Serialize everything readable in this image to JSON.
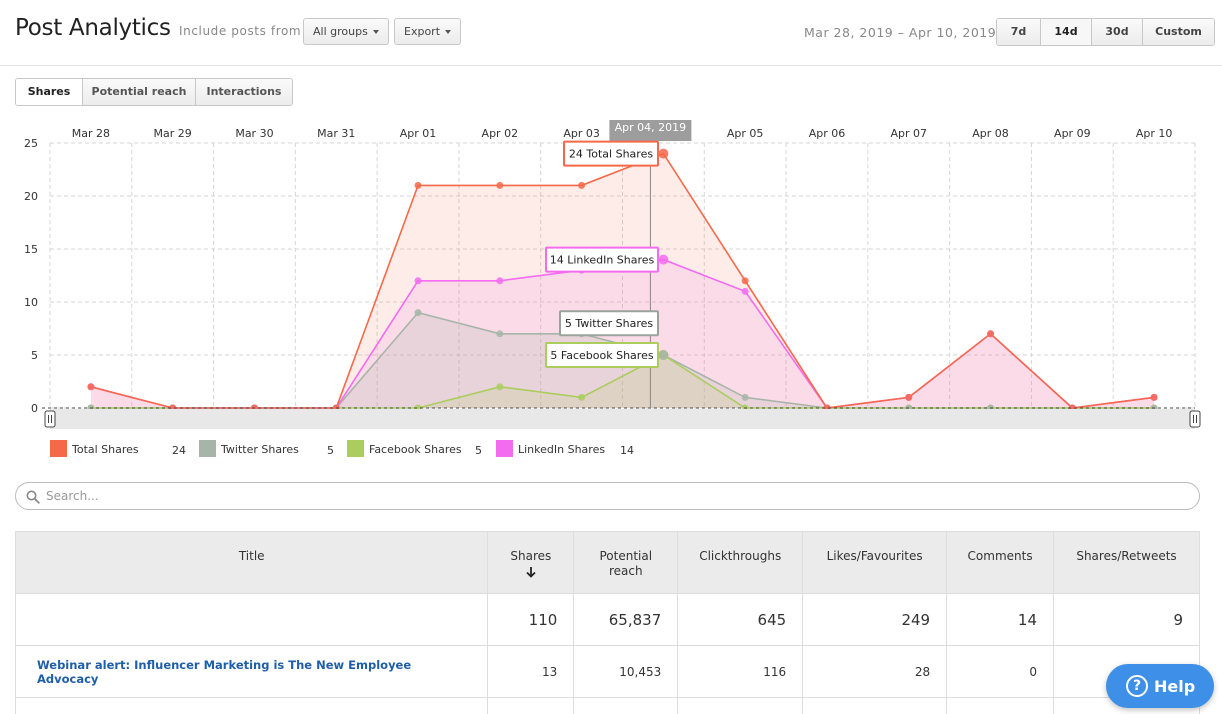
{
  "header": {
    "title": "Post Analytics",
    "include_label": "Include posts from",
    "groups_button": "All groups",
    "export_button": "Export",
    "date_range": "Mar 28, 2019 – Apr 10, 2019",
    "range_buttons": [
      "7d",
      "14d",
      "30d",
      "Custom"
    ],
    "active_range": "14d"
  },
  "tabs": {
    "items": [
      "Shares",
      "Potential reach",
      "Interactions"
    ],
    "active": "Shares"
  },
  "chart_data": {
    "type": "area",
    "x": [
      "Mar 28",
      "Mar 29",
      "Mar 30",
      "Mar 31",
      "Apr 01",
      "Apr 02",
      "Apr 03",
      "Apr 04",
      "Apr 05",
      "Apr 06",
      "Apr 07",
      "Apr 08",
      "Apr 09",
      "Apr 10"
    ],
    "series": [
      {
        "name": "Total Shares",
        "color": "#f5694a",
        "values": [
          2,
          0,
          0,
          0,
          21,
          21,
          21,
          24,
          12,
          0,
          1,
          7,
          0,
          1
        ]
      },
      {
        "name": "Twitter Shares",
        "color": "#a7b5a8",
        "values": [
          0,
          0,
          0,
          0,
          9,
          7,
          7,
          5,
          1,
          0,
          0,
          0,
          0,
          0
        ]
      },
      {
        "name": "Facebook Shares",
        "color": "#aacd5e",
        "values": [
          0,
          0,
          0,
          0,
          0,
          2,
          1,
          5,
          0,
          0,
          0,
          0,
          0,
          0
        ]
      },
      {
        "name": "LinkedIn Shares",
        "color": "#f36cf0",
        "values": [
          2,
          0,
          0,
          0,
          12,
          12,
          13,
          14,
          11,
          0,
          1,
          7,
          0,
          1
        ]
      }
    ],
    "yticks": [
      0,
      5,
      10,
      15,
      20,
      25
    ],
    "ylim": [
      0,
      25
    ],
    "hover": {
      "label": "Apr 04, 2019",
      "index": 7,
      "tooltips": [
        "24 Total Shares",
        "14 LinkedIn Shares",
        "5 Twitter Shares",
        "5 Facebook Shares"
      ]
    },
    "grid": true,
    "legend_placement": "bottom-left"
  },
  "legend": {
    "items": [
      {
        "name": "Total Shares",
        "value": "24",
        "color": "#f5694a"
      },
      {
        "name": "Twitter Shares",
        "value": "5",
        "color": "#a7b5a8"
      },
      {
        "name": "Facebook Shares",
        "value": "5",
        "color": "#aacd5e"
      },
      {
        "name": "LinkedIn Shares",
        "value": "14",
        "color": "#f36cf0"
      }
    ]
  },
  "search": {
    "placeholder": "Search...",
    "value": ""
  },
  "table": {
    "columns": [
      "Title",
      "Shares",
      "Potential reach",
      "Clickthroughs",
      "Likes/Favourites",
      "Comments",
      "Shares/Retweets"
    ],
    "column_lines": [
      [
        "Title"
      ],
      [
        "Shares"
      ],
      [
        "Potential",
        "reach"
      ],
      [
        "Clickthroughs"
      ],
      [
        "Likes/Favourites"
      ],
      [
        "Comments"
      ],
      [
        "Shares/Retweets"
      ]
    ],
    "sort_icon": "arrow-down-icon",
    "totals": [
      "",
      "110",
      "65,837",
      "645",
      "249",
      "14",
      "9"
    ],
    "rows": [
      {
        "title": "Webinar alert: Influencer Marketing is The New Employee Advocacy",
        "shares": "13",
        "reach": "10,453",
        "clicks": "116",
        "likes": "28",
        "comments": "0",
        "retweets": ""
      }
    ]
  },
  "help": {
    "label": "Help",
    "icon": "question-icon",
    "glyph": "?"
  }
}
